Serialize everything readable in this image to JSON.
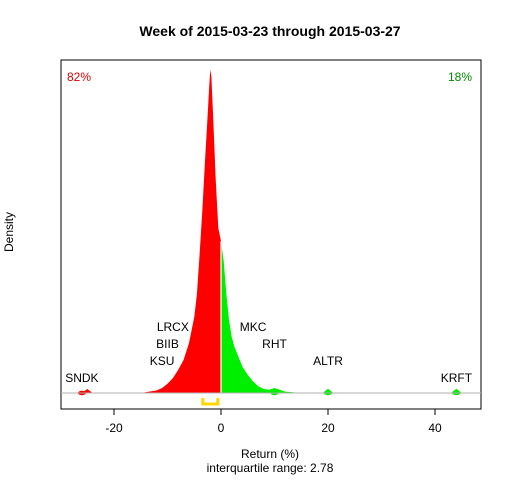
{
  "chart_data": {
    "type": "area",
    "title": "Week of 2015-03-23 through 2015-03-27",
    "xlabel": "Return (%)",
    "ylabel": "Density",
    "subtitle": "interquartile range: 2.78",
    "xlim": [
      -30,
      48
    ],
    "ylim": [
      0,
      1
    ],
    "x_ticks": [
      -20,
      0,
      20,
      40
    ],
    "x_tick_labels": [
      "-20",
      "0",
      "20",
      "40"
    ],
    "negative_share": "82%",
    "positive_share": "18%",
    "colors": {
      "negative": "#ff0000",
      "positive": "#00ee00",
      "iqr": "#ffd700",
      "neg_text": "#dd0000",
      "pos_text": "#008800"
    },
    "density_curve": {
      "x": [
        -30,
        -26,
        -25,
        -24,
        -20,
        -15,
        -12,
        -11,
        -10,
        -9,
        -8,
        -7,
        -6,
        -5,
        -4.5,
        -4,
        -3.5,
        -3,
        -2.5,
        -2.2,
        -2,
        -1.8,
        -1.5,
        -1,
        -0.5,
        0,
        0.5,
        1,
        1.5,
        2,
        2.5,
        3,
        3.5,
        4,
        5,
        6,
        7,
        8,
        9,
        10,
        11,
        12,
        15,
        19,
        20,
        21,
        25,
        35,
        43,
        44,
        45,
        48
      ],
      "y": [
        0,
        0,
        0.012,
        0,
        0,
        0,
        0.008,
        0.015,
        0.028,
        0.045,
        0.07,
        0.1,
        0.15,
        0.23,
        0.3,
        0.42,
        0.55,
        0.7,
        0.84,
        0.93,
        0.98,
        0.96,
        0.85,
        0.65,
        0.5,
        0.46,
        0.4,
        0.3,
        0.22,
        0.17,
        0.14,
        0.12,
        0.1,
        0.08,
        0.055,
        0.035,
        0.02,
        0.012,
        0.01,
        0.015,
        0.01,
        0.004,
        0,
        0,
        0.013,
        0,
        0,
        0,
        0,
        0.013,
        0,
        0
      ]
    },
    "iqr_range": [
      -3.4,
      -0.6
    ],
    "annotations": [
      {
        "label": "SNDK",
        "x": -26
      },
      {
        "label": "KSU",
        "x": -11
      },
      {
        "label": "BIIB",
        "x": -10
      },
      {
        "label": "LRCX",
        "x": -9
      },
      {
        "label": "MKC",
        "x": 6
      },
      {
        "label": "RHT",
        "x": 10
      },
      {
        "label": "ALTR",
        "x": 20
      },
      {
        "label": "KRFT",
        "x": 44
      }
    ]
  }
}
